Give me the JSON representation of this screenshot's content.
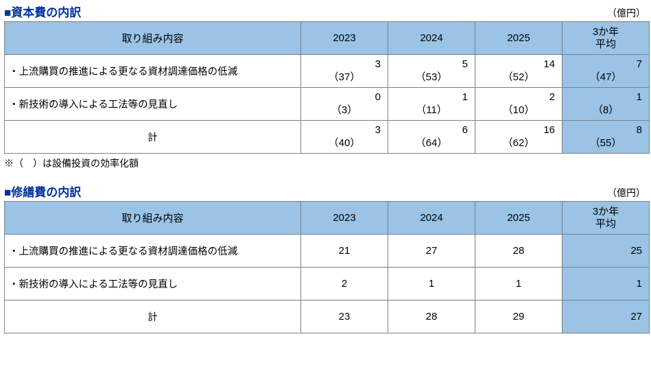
{
  "colors": {
    "title": "#0033a0",
    "header_bg": "#9ac3e6",
    "border": "#7f7f7f",
    "text": "#000000",
    "page_bg": "#ffffff"
  },
  "unit_label": "（億円）",
  "columns": {
    "label": "取り組み内容",
    "y2023": "2023",
    "y2024": "2024",
    "y2025": "2025",
    "avg_line1": "3か年",
    "avg_line2": "平均"
  },
  "capital": {
    "title": "■資本費の内訳",
    "rows": [
      {
        "label": "・上流購買の推進による更なる資材調達価格の低減",
        "y2023": {
          "v": "3",
          "p": "（37）"
        },
        "y2024": {
          "v": "5",
          "p": "（53）"
        },
        "y2025": {
          "v": "14",
          "p": "（52）"
        },
        "avg": {
          "v": "7",
          "p": "（47）"
        }
      },
      {
        "label": "・新技術の導入による工法等の見直し",
        "y2023": {
          "v": "0",
          "p": "（3）"
        },
        "y2024": {
          "v": "1",
          "p": "（11）"
        },
        "y2025": {
          "v": "2",
          "p": "（10）"
        },
        "avg": {
          "v": "1",
          "p": "（8）"
        }
      },
      {
        "label": "計",
        "center": true,
        "y2023": {
          "v": "3",
          "p": "（40）"
        },
        "y2024": {
          "v": "6",
          "p": "（64）"
        },
        "y2025": {
          "v": "16",
          "p": "（62）"
        },
        "avg": {
          "v": "8",
          "p": "（55）"
        }
      }
    ],
    "footnote": "※（　）は設備投資の効率化額"
  },
  "repair": {
    "title": "■修繕費の内訳",
    "rows": [
      {
        "label": "・上流購買の推進による更なる資材調達価格の低減",
        "y2023": "21",
        "y2024": "27",
        "y2025": "28",
        "avg": "25"
      },
      {
        "label": "・新技術の導入による工法等の見直し",
        "y2023": "2",
        "y2024": "1",
        "y2025": "1",
        "avg": "1"
      },
      {
        "label": "計",
        "center": true,
        "y2023": "23",
        "y2024": "28",
        "y2025": "29",
        "avg": "27"
      }
    ]
  }
}
